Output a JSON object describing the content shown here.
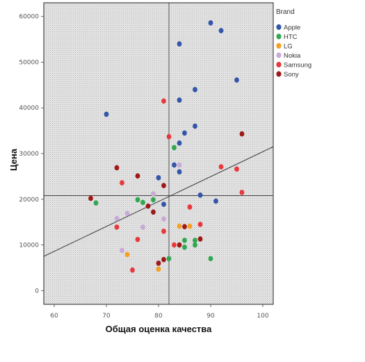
{
  "chart_data": {
    "type": "scatter",
    "xlabel": "Общая оценка качества",
    "ylabel": "Цена",
    "xlim": [
      58,
      102
    ],
    "ylim": [
      -3000,
      63000
    ],
    "x_ticks": [
      60,
      70,
      80,
      90,
      100
    ],
    "y_ticks": [
      0,
      10000,
      20000,
      30000,
      40000,
      50000,
      60000
    ],
    "grid": false,
    "plot_background": "stippled grey",
    "legend": {
      "title": "Brand",
      "position": "right",
      "entries": [
        {
          "label": "Apple",
          "color": "#3355aa"
        },
        {
          "label": "HTC",
          "color": "#2fa84f"
        },
        {
          "label": "LG",
          "color": "#f5a020"
        },
        {
          "label": "Nokia",
          "color": "#c8aad8"
        },
        {
          "label": "Samsung",
          "color": "#e8383c"
        },
        {
          "label": "Sony",
          "color": "#a01818"
        }
      ]
    },
    "reference_lines": {
      "x_mean": 82,
      "y_mean": 20800
    },
    "fit_line": {
      "from": [
        58,
        7500
      ],
      "to": [
        102,
        31500
      ]
    },
    "series": [
      {
        "name": "Apple",
        "color": "#3355aa",
        "points": [
          [
            70,
            38600
          ],
          [
            80,
            24700
          ],
          [
            81,
            18900
          ],
          [
            83,
            27500
          ],
          [
            84,
            26000
          ],
          [
            84,
            32300
          ],
          [
            84,
            41700
          ],
          [
            84,
            54000
          ],
          [
            85,
            34500
          ],
          [
            87,
            36000
          ],
          [
            87,
            44000
          ],
          [
            88,
            20900
          ],
          [
            90,
            58600
          ],
          [
            91,
            19600
          ],
          [
            92,
            56900
          ],
          [
            95,
            46100
          ]
        ]
      },
      {
        "name": "HTC",
        "color": "#2fa84f",
        "points": [
          [
            68,
            19200
          ],
          [
            76,
            19900
          ],
          [
            77,
            19300
          ],
          [
            79,
            19900
          ],
          [
            82,
            7000
          ],
          [
            83,
            31300
          ],
          [
            85,
            11000
          ],
          [
            85,
            9500
          ],
          [
            87,
            10000
          ],
          [
            87,
            11000
          ],
          [
            90,
            7000
          ]
        ]
      },
      {
        "name": "LG",
        "color": "#f5a020",
        "points": [
          [
            74,
            7900
          ],
          [
            80,
            4700
          ],
          [
            84,
            14100
          ],
          [
            86,
            14100
          ]
        ]
      },
      {
        "name": "Nokia",
        "color": "#c8aad8",
        "points": [
          [
            72,
            15800
          ],
          [
            73,
            8800
          ],
          [
            74,
            16900
          ],
          [
            77,
            13900
          ],
          [
            79,
            21200
          ],
          [
            81,
            15700
          ],
          [
            84,
            27500
          ]
        ]
      },
      {
        "name": "Samsung",
        "color": "#e8383c",
        "points": [
          [
            72,
            13900
          ],
          [
            73,
            23600
          ],
          [
            75,
            4500
          ],
          [
            76,
            11200
          ],
          [
            81,
            13000
          ],
          [
            81,
            41500
          ],
          [
            82,
            33700
          ],
          [
            83,
            10000
          ],
          [
            86,
            18300
          ],
          [
            88,
            14500
          ],
          [
            92,
            27100
          ],
          [
            95,
            26600
          ],
          [
            96,
            21500
          ]
        ]
      },
      {
        "name": "Sony",
        "color": "#a01818",
        "points": [
          [
            67,
            20200
          ],
          [
            72,
            26900
          ],
          [
            76,
            25100
          ],
          [
            78,
            18500
          ],
          [
            79,
            17200
          ],
          [
            80,
            6000
          ],
          [
            81,
            6800
          ],
          [
            81,
            23000
          ],
          [
            84,
            10000
          ],
          [
            85,
            14000
          ],
          [
            88,
            11300
          ],
          [
            96,
            34300
          ]
        ]
      }
    ]
  }
}
